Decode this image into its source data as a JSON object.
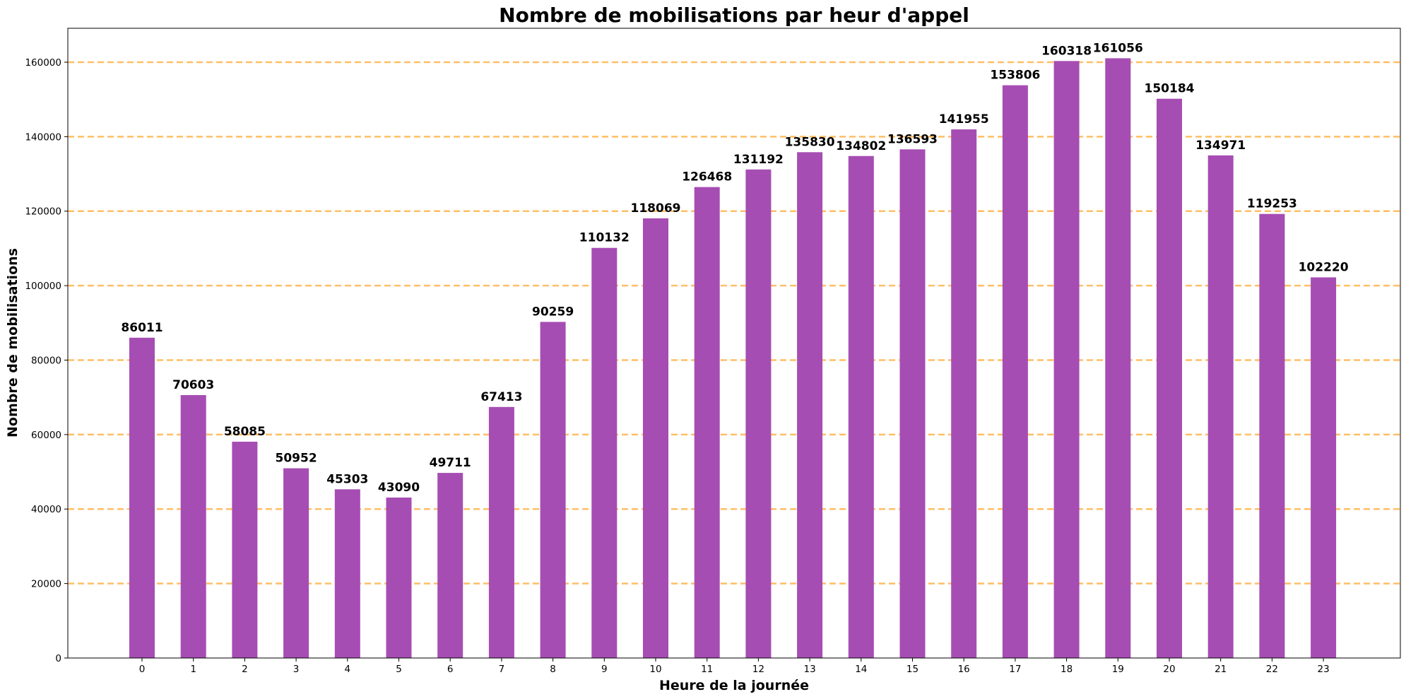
{
  "chart_data": {
    "type": "bar",
    "title": "Nombre de mobilisations par heur d'appel",
    "xlabel": "Heure de la journée",
    "ylabel": "Nombre de mobilisations",
    "categories": [
      "0",
      "1",
      "2",
      "3",
      "4",
      "5",
      "6",
      "7",
      "8",
      "9",
      "10",
      "11",
      "12",
      "13",
      "14",
      "15",
      "16",
      "17",
      "18",
      "19",
      "20",
      "21",
      "22",
      "23"
    ],
    "values": [
      86011,
      70603,
      58085,
      50952,
      45303,
      43090,
      49711,
      67413,
      90259,
      110132,
      118069,
      126468,
      131192,
      135830,
      134802,
      136593,
      141955,
      153806,
      160318,
      161056,
      150184,
      134971,
      119253,
      102220
    ],
    "data_labels": [
      "86011",
      "70603",
      "58085",
      "50952",
      "45303",
      "43090",
      "49711",
      "67413",
      "90259",
      "110132",
      "118069",
      "126468",
      "131192",
      "135830",
      "134802",
      "136593",
      "141955",
      "153806",
      "160318",
      "161056",
      "150184",
      "134971",
      "119253",
      "102220"
    ],
    "ylim": [
      0,
      169109
    ],
    "yticks": [
      0,
      20000,
      40000,
      60000,
      80000,
      100000,
      120000,
      140000,
      160000
    ],
    "ytick_labels": [
      "0",
      "20000",
      "40000",
      "60000",
      "80000",
      "100000",
      "120000",
      "140000",
      "160000"
    ],
    "grid": "horizontal dashed",
    "colors": {
      "bar": "#a64db3",
      "grid": "#ffbf66",
      "axis": "#000000"
    }
  }
}
